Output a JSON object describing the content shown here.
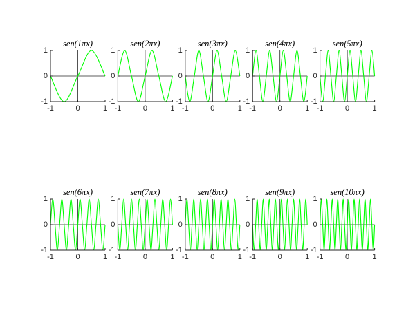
{
  "chart_data": [
    {
      "type": "line",
      "title": "sen(1πx)",
      "color": "#00ff00",
      "xlim": [
        -1,
        1
      ],
      "ylim": [
        -1,
        1
      ],
      "xticks": [
        -1,
        0,
        1
      ],
      "yticks": [
        -1,
        0,
        1
      ],
      "x": [
        -1,
        -0.5,
        0,
        0.5,
        1
      ],
      "values": [
        0,
        -1,
        0,
        1,
        0
      ]
    },
    {
      "type": "line",
      "title": "sen(2πx)",
      "color": "#00ff00",
      "xlim": [
        -1,
        1
      ],
      "ylim": [
        -1,
        1
      ],
      "xticks": [
        -1,
        0,
        1
      ],
      "yticks": [
        -1,
        0,
        1
      ],
      "x": [
        -1,
        -0.75,
        -0.5,
        -0.25,
        0,
        0.25,
        0.5,
        0.75,
        1
      ],
      "values": [
        0,
        1,
        0,
        -1,
        0,
        1,
        0,
        -1,
        0
      ]
    },
    {
      "type": "line",
      "title": "sen(3πx)",
      "color": "#00ff00",
      "xlim": [
        -1,
        1
      ],
      "ylim": [
        -1,
        1
      ],
      "xticks": [
        -1,
        0,
        1
      ],
      "yticks": [
        -1,
        0,
        1
      ],
      "x": [
        -1,
        -0.8333,
        -0.6667,
        -0.5,
        -0.3333,
        -0.1667,
        0,
        0.1667,
        0.3333,
        0.5,
        0.6667,
        0.8333,
        1
      ],
      "values": [
        0,
        -1,
        0,
        1,
        0,
        -1,
        0,
        1,
        0,
        -1,
        0,
        1,
        0
      ]
    },
    {
      "type": "line",
      "title": "sen(4πx)",
      "color": "#00ff00",
      "xlim": [
        -1,
        1
      ],
      "ylim": [
        -1,
        1
      ],
      "xticks": [
        -1,
        0,
        1
      ],
      "yticks": [
        -1,
        0,
        1
      ],
      "x": [
        -1,
        -0.875,
        -0.75,
        -0.625,
        -0.5,
        -0.375,
        -0.25,
        -0.125,
        0,
        0.125,
        0.25,
        0.375,
        0.5,
        0.625,
        0.75,
        0.875,
        1
      ],
      "values": [
        0,
        1,
        0,
        -1,
        0,
        1,
        0,
        -1,
        0,
        1,
        0,
        -1,
        0,
        1,
        0,
        -1,
        0
      ]
    },
    {
      "type": "line",
      "title": "sen(5πx)",
      "color": "#00ff00",
      "xlim": [
        -1,
        1
      ],
      "ylim": [
        -1,
        1
      ],
      "xticks": [
        -1,
        0,
        1
      ],
      "yticks": [
        -1,
        0,
        1
      ],
      "x": [
        -1,
        -0.9,
        -0.8,
        -0.7,
        -0.6,
        -0.5,
        -0.4,
        -0.3,
        -0.2,
        -0.1,
        0,
        0.1,
        0.2,
        0.3,
        0.4,
        0.5,
        0.6,
        0.7,
        0.8,
        0.9,
        1
      ],
      "values": [
        0,
        -1,
        0,
        1,
        0,
        -1,
        0,
        1,
        0,
        -1,
        0,
        1,
        0,
        -1,
        0,
        1,
        0,
        -1,
        0,
        1,
        0
      ]
    },
    {
      "type": "line",
      "title": "sen(6πx)",
      "color": "#00ff00",
      "xlim": [
        -1,
        1
      ],
      "ylim": [
        -1,
        1
      ],
      "xticks": [
        -1,
        0,
        1
      ],
      "yticks": [
        -1,
        0,
        1
      ],
      "x": [
        -1,
        -0.9167,
        -0.8333,
        -0.75,
        -0.6667,
        -0.5833,
        -0.5,
        -0.4167,
        -0.3333,
        -0.25,
        -0.1667,
        -0.0833,
        0,
        0.0833,
        0.1667,
        0.25,
        0.3333,
        0.4167,
        0.5,
        0.5833,
        0.6667,
        0.75,
        0.8333,
        0.9167,
        1
      ],
      "values": [
        0,
        1,
        0,
        -1,
        0,
        1,
        0,
        -1,
        0,
        1,
        0,
        -1,
        0,
        1,
        0,
        -1,
        0,
        1,
        0,
        -1,
        0,
        1,
        0,
        -1,
        0
      ]
    },
    {
      "type": "line",
      "title": "sen(7πx)",
      "color": "#00ff00",
      "xlim": [
        -1,
        1
      ],
      "ylim": [
        -1,
        1
      ],
      "xticks": [
        -1,
        0,
        1
      ],
      "yticks": [
        -1,
        0,
        1
      ],
      "x": [
        -1,
        -0.9286,
        -0.8571,
        -0.7857,
        -0.7143,
        -0.6429,
        -0.5714,
        -0.5,
        -0.4286,
        -0.3571,
        -0.2857,
        -0.2143,
        -0.1429,
        -0.0714,
        0,
        0.0714,
        0.1429,
        0.2143,
        0.2857,
        0.3571,
        0.4286,
        0.5,
        0.5714,
        0.6429,
        0.7143,
        0.7857,
        0.8571,
        0.9286,
        1
      ],
      "values": [
        0,
        -1,
        0,
        1,
        0,
        -1,
        0,
        1,
        0,
        -1,
        0,
        1,
        0,
        -1,
        0,
        1,
        0,
        -1,
        0,
        1,
        0,
        -1,
        0,
        1,
        0,
        -1,
        0,
        1,
        0
      ]
    },
    {
      "type": "line",
      "title": "sen(8πx)",
      "color": "#00ff00",
      "xlim": [
        -1,
        1
      ],
      "ylim": [
        -1,
        1
      ],
      "xticks": [
        -1,
        0,
        1
      ],
      "yticks": [
        -1,
        0,
        1
      ],
      "x": [
        -1,
        -0.9375,
        -0.875,
        -0.8125,
        -0.75,
        -0.6875,
        -0.625,
        -0.5625,
        -0.5,
        -0.4375,
        -0.375,
        -0.3125,
        -0.25,
        -0.1875,
        -0.125,
        -0.0625,
        0,
        0.0625,
        0.125,
        0.1875,
        0.25,
        0.3125,
        0.375,
        0.4375,
        0.5,
        0.5625,
        0.625,
        0.6875,
        0.75,
        0.8125,
        0.875,
        0.9375,
        1
      ],
      "values": [
        0,
        1,
        0,
        -1,
        0,
        1,
        0,
        -1,
        0,
        1,
        0,
        -1,
        0,
        1,
        0,
        -1,
        0,
        1,
        0,
        -1,
        0,
        1,
        0,
        -1,
        0,
        1,
        0,
        -1,
        0,
        1,
        0,
        -1,
        0
      ]
    },
    {
      "type": "line",
      "title": "sen(9πx)",
      "color": "#00ff00",
      "xlim": [
        -1,
        1
      ],
      "ylim": [
        -1,
        1
      ],
      "xticks": [
        -1,
        0,
        1
      ],
      "yticks": [
        -1,
        0,
        1
      ],
      "x": [
        -1,
        -0.9444,
        -0.8889,
        -0.8333,
        -0.7778,
        -0.7222,
        -0.6667,
        -0.6111,
        -0.5556,
        -0.5,
        -0.4444,
        -0.3889,
        -0.3333,
        -0.2778,
        -0.2222,
        -0.1667,
        -0.1111,
        -0.0556,
        0,
        0.0556,
        0.1111,
        0.1667,
        0.2222,
        0.2778,
        0.3333,
        0.3889,
        0.4444,
        0.5,
        0.5556,
        0.6111,
        0.6667,
        0.7222,
        0.7778,
        0.8333,
        0.8889,
        0.9444,
        1
      ],
      "values": [
        0,
        -1,
        0,
        1,
        0,
        -1,
        0,
        1,
        0,
        -1,
        0,
        1,
        0,
        -1,
        0,
        1,
        0,
        -1,
        0,
        1,
        0,
        -1,
        0,
        1,
        0,
        -1,
        0,
        1,
        0,
        -1,
        0,
        1,
        0,
        -1,
        0,
        1,
        0
      ]
    },
    {
      "type": "line",
      "title": "sen(10πx)",
      "color": "#00ff00",
      "xlim": [
        -1,
        1
      ],
      "ylim": [
        -1,
        1
      ],
      "xticks": [
        -1,
        0,
        1
      ],
      "yticks": [
        -1,
        0,
        1
      ],
      "x": [
        -1,
        -0.95,
        -0.9,
        -0.85,
        -0.8,
        -0.75,
        -0.7,
        -0.65,
        -0.6,
        -0.55,
        -0.5,
        -0.45,
        -0.4,
        -0.35,
        -0.3,
        -0.25,
        -0.2,
        -0.15,
        -0.1,
        -0.05,
        0,
        0.05,
        0.1,
        0.15,
        0.2,
        0.25,
        0.3,
        0.35,
        0.4,
        0.45,
        0.5,
        0.55,
        0.6,
        0.65,
        0.7,
        0.75,
        0.8,
        0.85,
        0.9,
        0.95,
        1
      ],
      "values": [
        0,
        1,
        0,
        -1,
        0,
        1,
        0,
        -1,
        0,
        1,
        0,
        -1,
        0,
        1,
        0,
        -1,
        0,
        1,
        0,
        -1,
        0,
        1,
        0,
        -1,
        0,
        1,
        0,
        -1,
        0,
        1,
        0,
        -1,
        0,
        1,
        0,
        -1,
        0,
        1,
        0,
        -1,
        0
      ]
    }
  ]
}
